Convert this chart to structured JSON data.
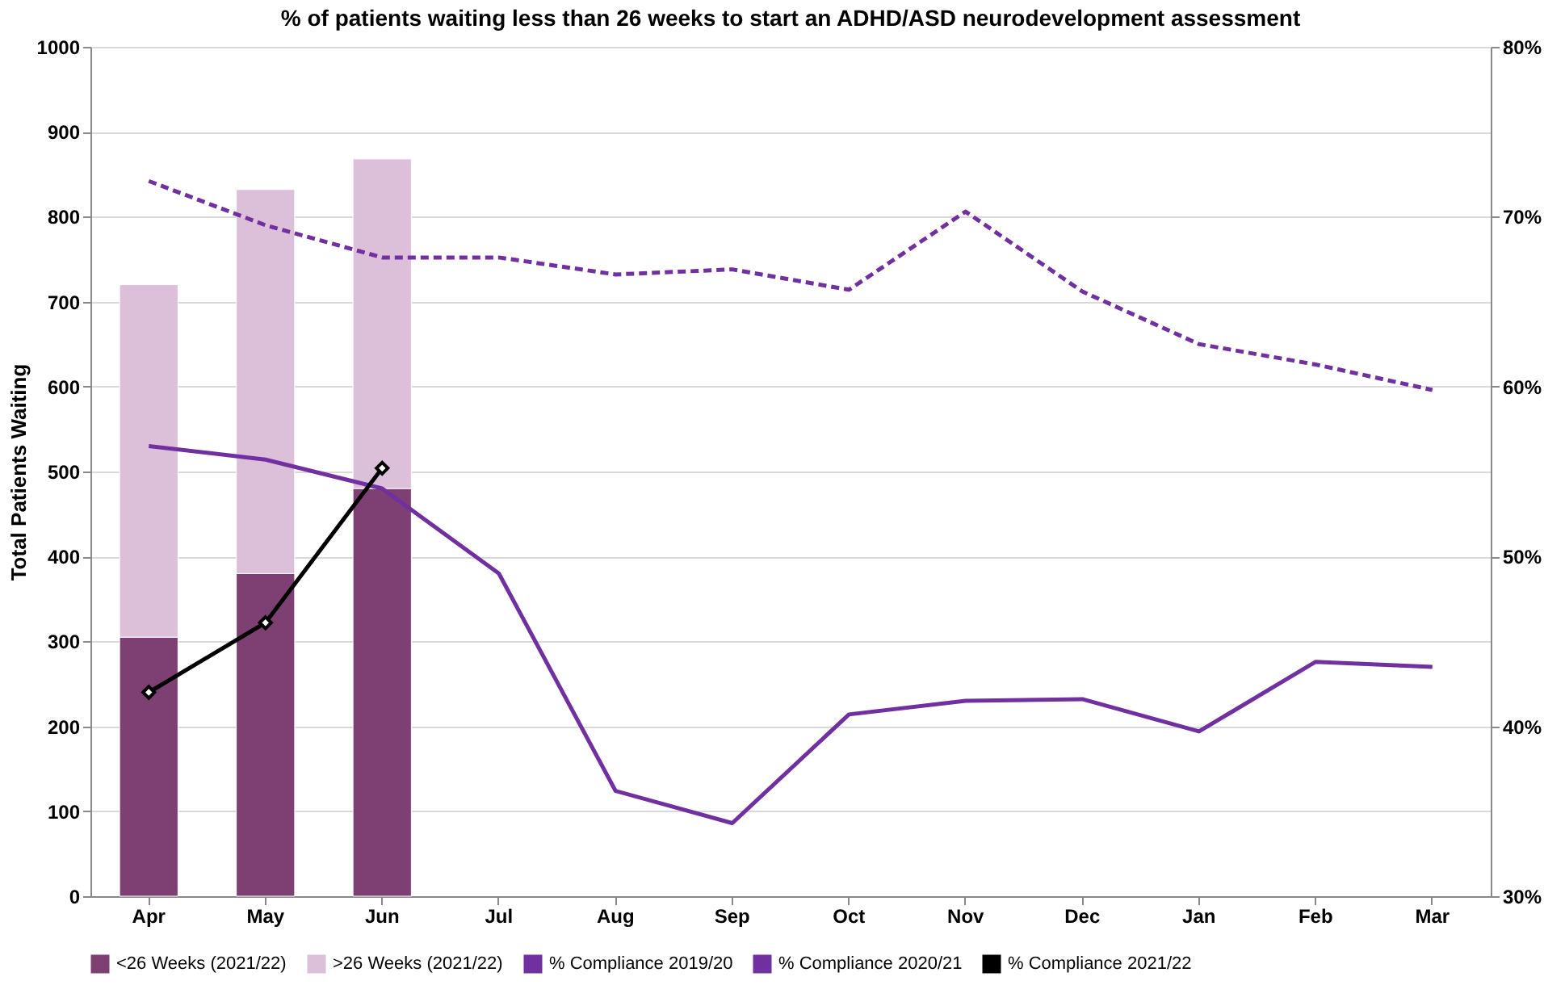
{
  "chart_data": {
    "type": "bar",
    "title": "% of patients waiting less than 26 weeks to start an ADHD/ASD neurodevelopment assessment",
    "categories": [
      "Apr",
      "May",
      "Jun",
      "Jul",
      "Aug",
      "Sep",
      "Oct",
      "Nov",
      "Dec",
      "Jan",
      "Feb",
      "Mar"
    ],
    "stacked": true,
    "ylabel": "Total Patients Waiting",
    "ylim": [
      0,
      1000
    ],
    "yticks": [
      0,
      100,
      200,
      300,
      400,
      500,
      600,
      700,
      800,
      900,
      1000
    ],
    "y2lim": [
      30,
      80
    ],
    "y2ticks": [
      {
        "value": 30,
        "label": "30%"
      },
      {
        "value": 40,
        "label": "40%"
      },
      {
        "value": 50,
        "label": "50%"
      },
      {
        "value": 60,
        "label": "60%"
      },
      {
        "value": 70,
        "label": "70%"
      },
      {
        "value": 80,
        "label": "80%"
      }
    ],
    "grid": "y",
    "legend": "bottom",
    "series": [
      {
        "name": "<26 Weeks (2021/22)",
        "color": "#7e3f72",
        "values": [
          305,
          380,
          480,
          null,
          null,
          null,
          null,
          null,
          null,
          null,
          null,
          null
        ]
      },
      {
        "name": ">26 Weeks (2021/22)",
        "color": "#dcc0d9",
        "values": [
          415,
          452,
          388,
          null,
          null,
          null,
          null,
          null,
          null,
          null,
          null,
          null
        ]
      },
      {
        "name": "% Compliance 2019/20",
        "type": "line",
        "axis": "y2",
        "line_style": "dashed",
        "marker": "none",
        "color": "#7030a0",
        "values": [
          72.1,
          69.5,
          67.6,
          67.6,
          66.6,
          66.9,
          65.7,
          70.3,
          65.6,
          62.5,
          61.3,
          59.8
        ]
      },
      {
        "name": "% Compliance 2020/21",
        "type": "line",
        "axis": "y2",
        "line_style": "solid",
        "marker": "none",
        "color": "#7030a0",
        "values": [
          56.5,
          55.7,
          54.0,
          49.0,
          36.2,
          34.3,
          40.7,
          41.5,
          41.6,
          39.7,
          43.8,
          43.5
        ]
      },
      {
        "name": "% Compliance 2021/22",
        "type": "line",
        "axis": "y2",
        "line_style": "solid",
        "marker": "diamond",
        "color": "#000000",
        "values": [
          42.0,
          46.1,
          55.2,
          null,
          null,
          null,
          null,
          null,
          null,
          null,
          null,
          null
        ]
      }
    ]
  }
}
